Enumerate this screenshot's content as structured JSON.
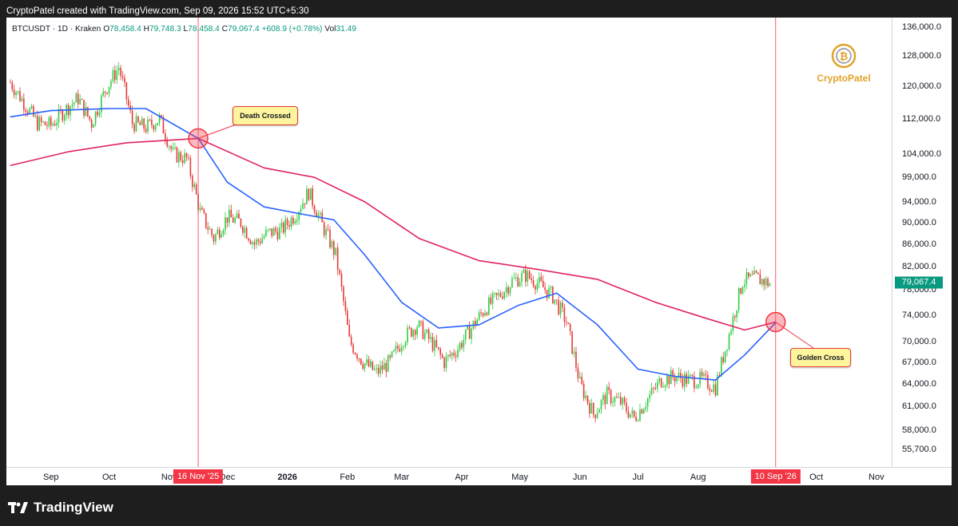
{
  "header": {
    "text": "CryptoPatel created with TradingView.com, Sep 09, 2026 15:52 UTC+5:30"
  },
  "symbol_bar": {
    "symbol": "BTCUSDT · 1D · Kraken",
    "o_label": "O",
    "o_value": "78,458.4",
    "h_label": "H",
    "h_value": "79,748.3",
    "l_label": "L",
    "l_value": "78,458.4",
    "c_label": "C",
    "c_value": "79,067.4",
    "change": "+608.9 (+0.78%)",
    "vol_label": "Vol",
    "vol_value": "31.49"
  },
  "colors": {
    "up": "#089981",
    "up_candle": "#2ecc40",
    "down": "#e53935",
    "ma_fast": "#2962ff",
    "ma_slow": "#e0245e",
    "marker": "#f23645",
    "brand": "#e2a32b"
  },
  "brand": {
    "name": "CryptoPatel",
    "icon": "bitcoin-coin-icon"
  },
  "annotations": {
    "death_cross": "Death Crossed",
    "golden_cross": "Golden Cross"
  },
  "last_price": "79,067.4",
  "footer": {
    "logo_text": "TradingView",
    "logo_icon": "tradingview-logo-icon"
  },
  "chart_data": {
    "type": "candlestick",
    "symbol": "BTCUSDT",
    "interval": "1D",
    "y_axis_labels": [
      "136,000.0",
      "128,000.0",
      "120,000.0",
      "112,000.0",
      "104,000.0",
      "99,000.0",
      "94,000.0",
      "90,000.0",
      "86,000.0",
      "82,000.0",
      "78,000.0",
      "74,000.0",
      "70,000.0",
      "67,000.0",
      "64,000.0",
      "61,000.0",
      "58,000.0",
      "55,700.0"
    ],
    "y_axis_values": [
      136000,
      128000,
      120000,
      112000,
      104000,
      99000,
      94000,
      90000,
      86000,
      82000,
      78000,
      74000,
      70000,
      67000,
      64000,
      61000,
      58000,
      55700
    ],
    "x_axis_labels": [
      "Sep",
      "Oct",
      "Nov",
      "Dec",
      "2026",
      "Feb",
      "Mar",
      "Apr",
      "May",
      "Jun",
      "Jul",
      "Aug",
      "Sep",
      "Oct",
      "Nov"
    ],
    "x_axis_markers": [
      "16 Nov '25",
      "10 Sep '26"
    ],
    "log_scale": true,
    "ylim": [
      55700,
      136000
    ],
    "series": [
      {
        "kind": "candles",
        "close_path": [
          [
            "2025-08-11",
            121000
          ],
          [
            "2025-08-18",
            116000
          ],
          [
            "2025-08-25",
            111000
          ],
          [
            "2025-09-01",
            110500
          ],
          [
            "2025-09-08",
            114000
          ],
          [
            "2025-09-15",
            117000
          ],
          [
            "2025-09-22",
            111000
          ],
          [
            "2025-09-29",
            119000
          ],
          [
            "2025-10-06",
            125000
          ],
          [
            "2025-10-13",
            111000
          ],
          [
            "2025-10-20",
            110000
          ],
          [
            "2025-10-27",
            112000
          ],
          [
            "2025-11-03",
            104000
          ],
          [
            "2025-11-10",
            103000
          ],
          [
            "2025-11-17",
            92000
          ],
          [
            "2025-11-24",
            87000
          ],
          [
            "2025-12-01",
            91000
          ],
          [
            "2025-12-08",
            90000
          ],
          [
            "2025-12-15",
            86000
          ],
          [
            "2025-12-22",
            88000
          ],
          [
            "2025-12-29",
            88500
          ],
          [
            "2026-01-05",
            91500
          ],
          [
            "2026-01-12",
            96000
          ],
          [
            "2026-01-19",
            89500
          ],
          [
            "2026-01-26",
            84000
          ],
          [
            "2026-02-02",
            70000
          ],
          [
            "2026-02-09",
            67000
          ],
          [
            "2026-02-16",
            65500
          ],
          [
            "2026-02-23",
            67000
          ],
          [
            "2026-03-02",
            70500
          ],
          [
            "2026-03-09",
            72500
          ],
          [
            "2026-03-16",
            70000
          ],
          [
            "2026-03-23",
            67000
          ],
          [
            "2026-03-30",
            69000
          ],
          [
            "2026-04-06",
            72000
          ],
          [
            "2026-04-13",
            75000
          ],
          [
            "2026-04-20",
            77000
          ],
          [
            "2026-04-27",
            79500
          ],
          [
            "2026-05-04",
            80500
          ],
          [
            "2026-05-11",
            79000
          ],
          [
            "2026-05-18",
            77000
          ],
          [
            "2026-05-25",
            73000
          ],
          [
            "2026-06-01",
            64000
          ],
          [
            "2026-06-08",
            60000
          ],
          [
            "2026-06-15",
            62500
          ],
          [
            "2026-06-22",
            61500
          ],
          [
            "2026-06-29",
            59500
          ],
          [
            "2026-07-06",
            62000
          ],
          [
            "2026-07-13",
            64500
          ],
          [
            "2026-07-20",
            65000
          ],
          [
            "2026-07-27",
            64500
          ],
          [
            "2026-08-03",
            64500
          ],
          [
            "2026-08-10",
            63500
          ],
          [
            "2026-08-17",
            71000
          ],
          [
            "2026-08-24",
            79500
          ],
          [
            "2026-08-31",
            80000
          ],
          [
            "2026-09-07",
            79067.4
          ]
        ]
      },
      {
        "kind": "ma_fast",
        "points": [
          [
            "2025-08-11",
            112500
          ],
          [
            "2025-09-01",
            114000
          ],
          [
            "2025-10-01",
            114500
          ],
          [
            "2025-10-20",
            114500
          ],
          [
            "2025-11-16",
            107500
          ],
          [
            "2025-12-01",
            98000
          ],
          [
            "2025-12-20",
            93000
          ],
          [
            "2026-01-10",
            91500
          ],
          [
            "2026-01-25",
            90500
          ],
          [
            "2026-02-10",
            84000
          ],
          [
            "2026-03-01",
            76000
          ],
          [
            "2026-03-20",
            72000
          ],
          [
            "2026-04-10",
            72500
          ],
          [
            "2026-04-30",
            75500
          ],
          [
            "2026-05-20",
            77500
          ],
          [
            "2026-06-10",
            72500
          ],
          [
            "2026-07-01",
            66000
          ],
          [
            "2026-07-20",
            65000
          ],
          [
            "2026-08-10",
            64500
          ],
          [
            "2026-08-25",
            68000
          ],
          [
            "2026-09-10",
            72800
          ]
        ]
      },
      {
        "kind": "ma_slow",
        "points": [
          [
            "2025-08-11",
            101500
          ],
          [
            "2025-09-10",
            104500
          ],
          [
            "2025-10-10",
            106500
          ],
          [
            "2025-11-16",
            107500
          ],
          [
            "2025-12-20",
            101000
          ],
          [
            "2026-01-15",
            99000
          ],
          [
            "2026-02-10",
            94000
          ],
          [
            "2026-03-10",
            87000
          ],
          [
            "2026-04-10",
            83000
          ],
          [
            "2026-05-10",
            81500
          ],
          [
            "2026-06-10",
            79800
          ],
          [
            "2026-07-10",
            76000
          ],
          [
            "2026-08-05",
            73500
          ],
          [
            "2026-08-25",
            71700
          ],
          [
            "2026-09-10",
            72900
          ]
        ]
      }
    ]
  }
}
